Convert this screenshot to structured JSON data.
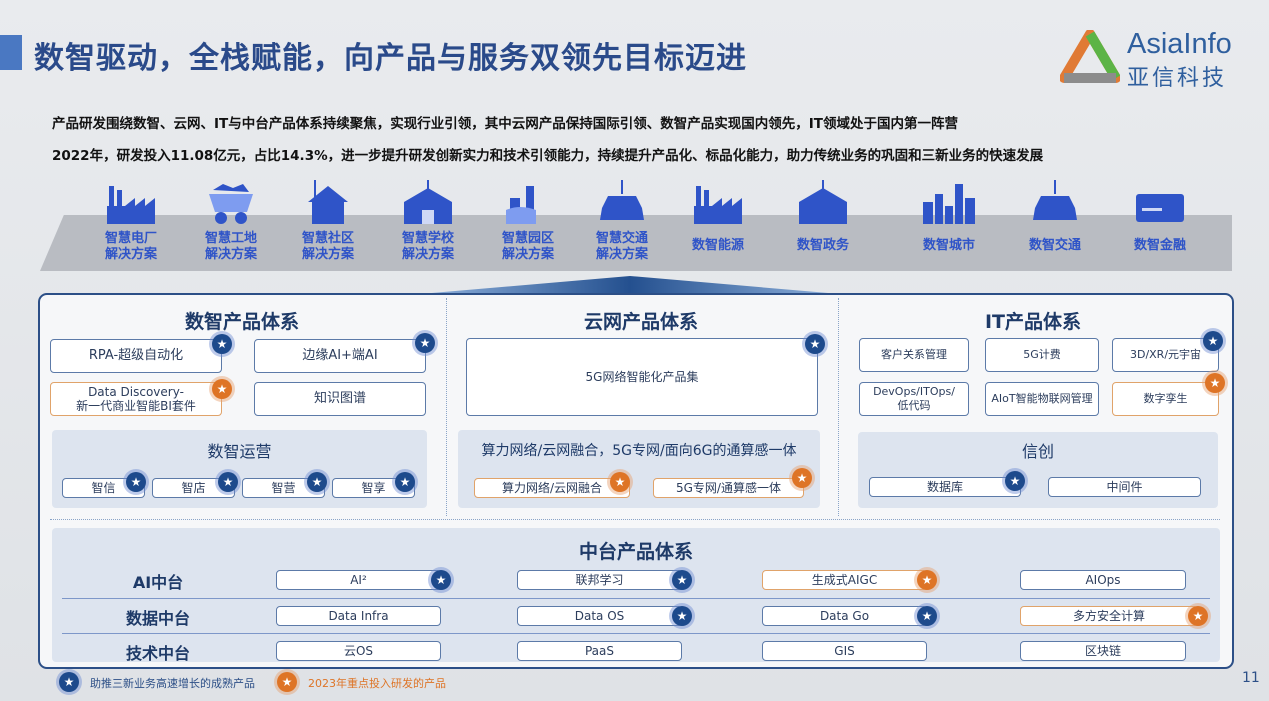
{
  "header": {
    "title": "数智驱动，全栈赋能，向产品与服务双领先目标迈进",
    "logo_en": "AsiaInfo",
    "logo_cn": "亚信科技"
  },
  "intro": [
    "产品研发围绕数智、云网、IT与中台产品体系持续聚焦，实现行业引领，其中云网产品保持国际引领、数智产品实现国内领先，IT领域处于国内第一阵营",
    "2022年，研发投入11.08亿元，占比14.3%，进一步提升研发创新实力和技术引领能力，持续提升产品化、标品化能力，助力传统业务的巩固和三新业务的快速发展"
  ],
  "scenarios": [
    {
      "l1": "智慧电厂",
      "l2": "解决方案",
      "icon": "factory-icon"
    },
    {
      "l1": "智慧工地",
      "l2": "解决方案",
      "icon": "mine-cart-icon"
    },
    {
      "l1": "智慧社区",
      "l2": "解决方案",
      "icon": "house-icon"
    },
    {
      "l1": "智慧学校",
      "l2": "解决方案",
      "icon": "school-icon"
    },
    {
      "l1": "智慧园区",
      "l2": "解决方案",
      "icon": "park-icon"
    },
    {
      "l1": "智慧交通",
      "l2": "解决方案",
      "icon": "car-icon"
    },
    {
      "l1": "数智能源",
      "l2": "",
      "icon": "factory-icon"
    },
    {
      "l1": "数智政务",
      "l2": "",
      "icon": "government-icon"
    },
    {
      "l1": "数智城市",
      "l2": "",
      "icon": "city-icon"
    },
    {
      "l1": "数智交通",
      "l2": "",
      "icon": "car-icon"
    },
    {
      "l1": "数智金融",
      "l2": "",
      "icon": "card-icon"
    }
  ],
  "digital": {
    "title": "数智产品体系",
    "items": [
      "RPA-超级自动化",
      "边缘AI+端AI",
      "Data Discovery-",
      "新一代商业智能BI套件",
      "知识图谱"
    ],
    "ops_title": "数智运营",
    "ops": [
      "智信",
      "智店",
      "智营",
      "智享"
    ]
  },
  "cloud": {
    "title": "云网产品体系",
    "main": "5G网络智能化产品集",
    "sub_title": "算力网络/云网融合，5G专网/面向6G的通算感一体",
    "subs": [
      "算力网络/云网融合",
      "5G专网/通算感一体"
    ]
  },
  "it": {
    "title": "IT产品体系",
    "items": [
      "客户关系管理",
      "5G计费",
      "3D/XR/元宇宙",
      "DevOps/ITOps/",
      "低代码",
      "AIoT智能物联网管理",
      "数字孪生"
    ],
    "xc_title": "信创",
    "xc": [
      "数据库",
      "中间件"
    ]
  },
  "middle": {
    "title": "中台产品体系",
    "rows": [
      {
        "label": "AI中台",
        "items": [
          "AI²",
          "联邦学习",
          "生成式AIGC",
          "AIOps"
        ]
      },
      {
        "label": "数据中台",
        "items": [
          "Data Infra",
          "Data OS",
          "Data Go",
          "多方安全计算"
        ]
      },
      {
        "label": "技术中台",
        "items": [
          "云OS",
          "PaaS",
          "GIS",
          "区块链"
        ]
      }
    ]
  },
  "legend": {
    "mature": "助推三新业务高速增长的成熟产品",
    "focus": "2023年重点投入研发的产品"
  },
  "page_number": "11",
  "colors": {
    "accent": "#2c4f87",
    "mature_star": "#1d4a8c",
    "focus_star": "#de7426",
    "scenario_icon": "#2f54c8"
  }
}
